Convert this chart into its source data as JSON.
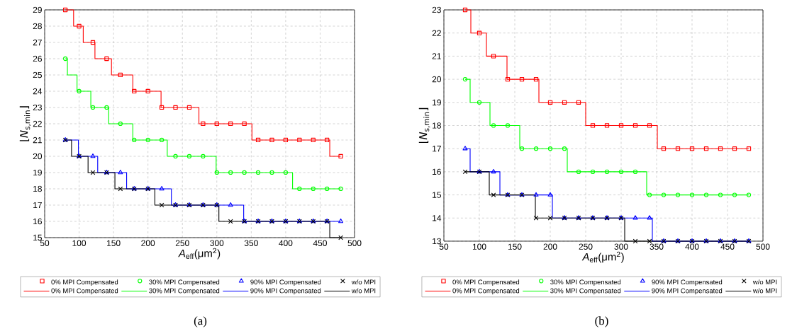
{
  "chart_data": [
    {
      "type": "step",
      "xlabel": "*A*$_{eff}$(μm$^{2}$)",
      "ylabel": "⌊*N*$_{s,min}$⌋",
      "xlim": [
        50,
        500
      ],
      "xticks": [
        50,
        100,
        150,
        200,
        250,
        300,
        350,
        400,
        450,
        500
      ],
      "ylim": [
        15,
        29
      ],
      "yticks": [
        15,
        16,
        17,
        18,
        19,
        20,
        21,
        22,
        23,
        24,
        25,
        26,
        27,
        28,
        29
      ],
      "grid": true,
      "legend": "bottom",
      "annotations": [
        "(a)"
      ],
      "series": [
        {
          "name": "0% MPI Compensated",
          "type": "scatter",
          "marker": "square",
          "color": "#ff0000",
          "x": [
            80,
            100,
            120,
            140,
            160,
            180,
            200,
            220,
            240,
            260,
            280,
            300,
            320,
            340,
            360,
            380,
            400,
            420,
            440,
            460,
            480
          ],
          "values": [
            29,
            28,
            27,
            26,
            25,
            24,
            24,
            23,
            23,
            23,
            22,
            22,
            22,
            22,
            21,
            21,
            21,
            21,
            21,
            21,
            20
          ]
        },
        {
          "name": "30% MPI Compensated",
          "type": "scatter",
          "marker": "circle",
          "color": "#00ff00",
          "x": [
            80,
            100,
            120,
            140,
            160,
            180,
            200,
            220,
            240,
            260,
            280,
            300,
            320,
            340,
            360,
            380,
            400,
            420,
            440,
            460,
            480
          ],
          "values": [
            26,
            24,
            23,
            23,
            22,
            21,
            21,
            21,
            20,
            20,
            20,
            19,
            19,
            19,
            19,
            19,
            19,
            18,
            18,
            18,
            18
          ]
        },
        {
          "name": "90% MPI Compensated",
          "type": "scatter",
          "marker": "triangle",
          "color": "#0000ff",
          "x": [
            80,
            100,
            120,
            140,
            160,
            180,
            200,
            220,
            240,
            260,
            280,
            300,
            320,
            340,
            360,
            380,
            400,
            420,
            440,
            460,
            480
          ],
          "values": [
            21,
            20,
            20,
            19,
            19,
            18,
            18,
            18,
            17,
            17,
            17,
            17,
            17,
            16,
            16,
            16,
            16,
            16,
            16,
            16,
            16
          ]
        },
        {
          "name": "w/o MPI",
          "type": "scatter",
          "marker": "cross",
          "color": "#000000",
          "x": [
            80,
            100,
            120,
            140,
            160,
            180,
            200,
            220,
            240,
            260,
            280,
            300,
            320,
            340,
            360,
            380,
            400,
            420,
            440,
            460,
            480
          ],
          "values": [
            21,
            20,
            19,
            19,
            18,
            18,
            18,
            17,
            17,
            17,
            17,
            17,
            16,
            16,
            16,
            16,
            16,
            16,
            16,
            16,
            15
          ]
        },
        {
          "name": "0% MPI Compensated",
          "marker": "none",
          "color": "#ff0000",
          "x": [
            80,
            92,
            106,
            123,
            147,
            178,
            219,
            274,
            351,
            464,
            480
          ],
          "values": [
            29,
            28,
            27,
            26,
            25,
            24,
            23,
            22,
            21,
            20,
            20
          ]
        },
        {
          "name": "30% MPI Compensated",
          "marker": "none",
          "color": "#00ff00",
          "x": [
            80,
            83,
            97,
            117,
            143,
            178,
            228,
            299,
            410,
            480
          ],
          "values": [
            26,
            25,
            24,
            23,
            22,
            21,
            20,
            19,
            18,
            18
          ]
        },
        {
          "name": "90% MPI Compensated",
          "marker": "none",
          "color": "#0000ff",
          "x": [
            80,
            99,
            127,
            169,
            234,
            339,
            480
          ],
          "values": [
            21,
            20,
            19,
            18,
            17,
            16,
            16
          ]
        },
        {
          "name": "w/o MPI",
          "marker": "none",
          "color": "#000000",
          "x": [
            80,
            89,
            113,
            152,
            210,
            303,
            464,
            480
          ],
          "values": [
            21,
            20,
            19,
            18,
            17,
            16,
            15,
            15
          ]
        }
      ]
    },
    {
      "type": "step",
      "xlabel": "*A*$_{eff}$(μm$^{2}$)",
      "ylabel": "⌊*N*$_{s,min}$⌋",
      "xlim": [
        50,
        500
      ],
      "xticks": [
        50,
        100,
        150,
        200,
        250,
        300,
        350,
        400,
        450,
        500
      ],
      "ylim": [
        13,
        23
      ],
      "yticks": [
        13,
        14,
        15,
        16,
        17,
        18,
        19,
        20,
        21,
        22,
        23
      ],
      "grid": true,
      "legend": "bottom",
      "annotations": [
        "(b)"
      ],
      "series": [
        {
          "name": "0% MPI Compensated",
          "type": "scatter",
          "marker": "square",
          "color": "#ff0000",
          "x": [
            80,
            100,
            120,
            140,
            160,
            180,
            200,
            220,
            240,
            260,
            280,
            300,
            320,
            340,
            360,
            380,
            400,
            420,
            440,
            460,
            480
          ],
          "values": [
            23,
            22,
            21,
            20,
            20,
            20,
            19,
            19,
            19,
            18,
            18,
            18,
            18,
            18,
            17,
            17,
            17,
            17,
            17,
            17,
            17
          ]
        },
        {
          "name": "30% MPI Compensated",
          "type": "scatter",
          "marker": "circle",
          "color": "#00ff00",
          "x": [
            80,
            100,
            120,
            140,
            160,
            180,
            200,
            220,
            240,
            260,
            280,
            300,
            320,
            340,
            360,
            380,
            400,
            420,
            440,
            460,
            480
          ],
          "values": [
            20,
            19,
            18,
            18,
            17,
            17,
            17,
            17,
            16,
            16,
            16,
            16,
            16,
            15,
            15,
            15,
            15,
            15,
            15,
            15,
            15
          ]
        },
        {
          "name": "90% MPI Compensated",
          "type": "scatter",
          "marker": "triangle",
          "color": "#0000ff",
          "x": [
            80,
            100,
            120,
            140,
            160,
            180,
            200,
            220,
            240,
            260,
            280,
            300,
            320,
            340,
            360,
            380,
            400,
            420,
            440,
            460,
            480
          ],
          "values": [
            17,
            16,
            16,
            15,
            15,
            15,
            15,
            14,
            14,
            14,
            14,
            14,
            14,
            14,
            13,
            13,
            13,
            13,
            13,
            13,
            13
          ]
        },
        {
          "name": "w/o MPI",
          "type": "scatter",
          "marker": "cross",
          "color": "#000000",
          "x": [
            80,
            100,
            120,
            140,
            160,
            180,
            200,
            220,
            240,
            260,
            280,
            300,
            320,
            340,
            360,
            380,
            400,
            420,
            440,
            460,
            480
          ],
          "values": [
            16,
            16,
            15,
            15,
            15,
            14,
            14,
            14,
            14,
            14,
            14,
            14,
            13,
            13,
            13,
            13,
            13,
            13,
            13,
            13,
            13
          ]
        },
        {
          "name": "0% MPI Compensated",
          "marker": "none",
          "color": "#ff0000",
          "x": [
            80,
            88,
            110,
            139,
            184,
            250,
            351,
            480
          ],
          "values": [
            23,
            22,
            21,
            20,
            19,
            18,
            17,
            17
          ]
        },
        {
          "name": "30% MPI Compensated",
          "marker": "none",
          "color": "#00ff00",
          "x": [
            80,
            87,
            115,
            157,
            224,
            336,
            480
          ],
          "values": [
            20,
            19,
            18,
            17,
            16,
            15,
            15
          ]
        },
        {
          "name": "90% MPI Compensated",
          "marker": "none",
          "color": "#0000ff",
          "x": [
            80,
            87,
            129,
            203,
            344,
            480
          ],
          "values": [
            17,
            16,
            15,
            14,
            13,
            13
          ]
        },
        {
          "name": "w/o MPI",
          "marker": "none",
          "color": "#000000",
          "x": [
            80,
            114,
            179,
            305,
            480
          ],
          "values": [
            16,
            15,
            14,
            13,
            13
          ]
        }
      ]
    }
  ]
}
